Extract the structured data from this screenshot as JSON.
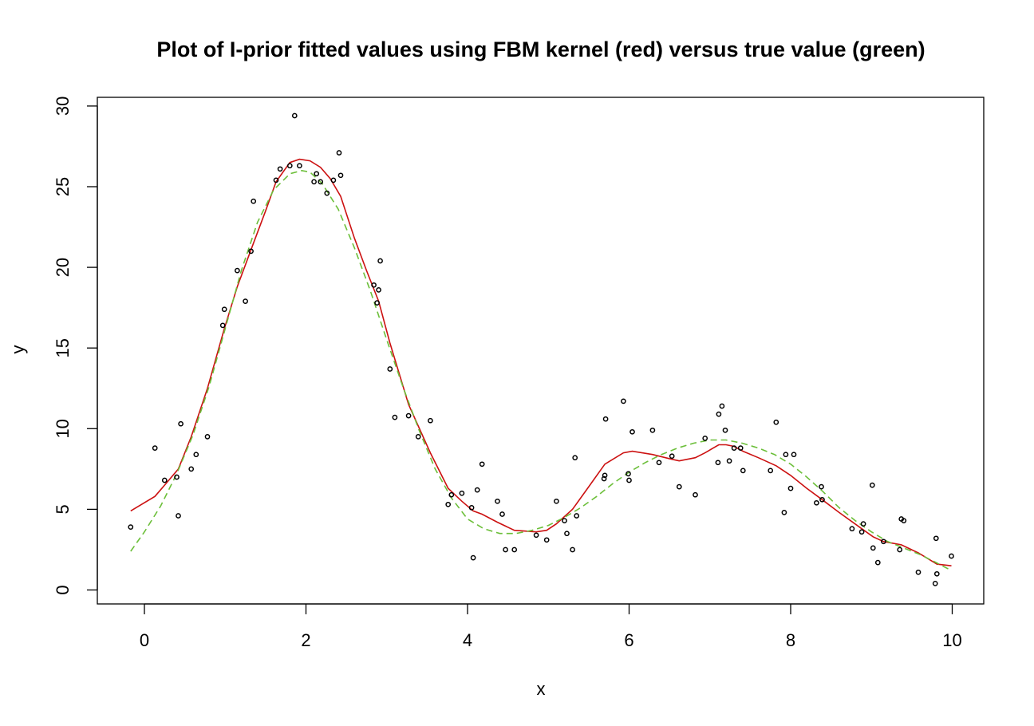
{
  "chart_data": {
    "type": "scatter",
    "title": "Plot of I-prior fitted values using FBM kernel (red) versus true value (green)",
    "xlabel": "x",
    "ylabel": "y",
    "xlim": [
      -0.2,
      10
    ],
    "ylim": [
      0,
      30
    ],
    "xticks": [
      0,
      2,
      4,
      6,
      8,
      10
    ],
    "yticks": [
      0,
      5,
      10,
      15,
      20,
      25,
      30
    ],
    "grid": false,
    "points": [
      [
        -0.17,
        3.9
      ],
      [
        0.13,
        8.8
      ],
      [
        0.25,
        6.8
      ],
      [
        0.4,
        7.0
      ],
      [
        0.42,
        4.6
      ],
      [
        0.45,
        10.3
      ],
      [
        0.58,
        7.5
      ],
      [
        0.64,
        8.4
      ],
      [
        0.78,
        9.5
      ],
      [
        0.97,
        16.4
      ],
      [
        0.99,
        17.4
      ],
      [
        1.15,
        19.8
      ],
      [
        1.25,
        17.9
      ],
      [
        1.32,
        21.0
      ],
      [
        1.35,
        24.1
      ],
      [
        1.63,
        25.4
      ],
      [
        1.68,
        26.1
      ],
      [
        1.8,
        26.3
      ],
      [
        1.86,
        29.4
      ],
      [
        1.92,
        26.3
      ],
      [
        2.1,
        25.3
      ],
      [
        2.13,
        25.8
      ],
      [
        2.18,
        25.3
      ],
      [
        2.26,
        24.6
      ],
      [
        2.34,
        25.4
      ],
      [
        2.41,
        27.1
      ],
      [
        2.43,
        25.7
      ],
      [
        2.84,
        18.9
      ],
      [
        2.88,
        17.8
      ],
      [
        2.9,
        18.6
      ],
      [
        2.92,
        20.4
      ],
      [
        3.04,
        13.7
      ],
      [
        3.1,
        10.7
      ],
      [
        3.27,
        10.8
      ],
      [
        3.39,
        9.5
      ],
      [
        3.54,
        10.5
      ],
      [
        3.76,
        5.3
      ],
      [
        3.8,
        5.9
      ],
      [
        3.93,
        6.0
      ],
      [
        4.05,
        5.1
      ],
      [
        4.07,
        2.0
      ],
      [
        4.12,
        6.2
      ],
      [
        4.18,
        7.8
      ],
      [
        4.37,
        5.5
      ],
      [
        4.43,
        4.7
      ],
      [
        4.47,
        2.5
      ],
      [
        4.58,
        2.5
      ],
      [
        4.85,
        3.4
      ],
      [
        4.98,
        3.1
      ],
      [
        5.1,
        5.5
      ],
      [
        5.2,
        4.3
      ],
      [
        5.23,
        3.5
      ],
      [
        5.3,
        2.5
      ],
      [
        5.33,
        8.2
      ],
      [
        5.35,
        4.6
      ],
      [
        5.69,
        6.9
      ],
      [
        5.7,
        7.1
      ],
      [
        5.71,
        10.6
      ],
      [
        5.93,
        11.7
      ],
      [
        5.99,
        7.2
      ],
      [
        6.0,
        6.8
      ],
      [
        6.04,
        9.8
      ],
      [
        6.29,
        9.9
      ],
      [
        6.37,
        7.9
      ],
      [
        6.53,
        8.3
      ],
      [
        6.62,
        6.4
      ],
      [
        6.82,
        5.9
      ],
      [
        6.94,
        9.4
      ],
      [
        7.1,
        7.9
      ],
      [
        7.11,
        10.9
      ],
      [
        7.15,
        11.4
      ],
      [
        7.19,
        9.9
      ],
      [
        7.24,
        8.0
      ],
      [
        7.3,
        8.8
      ],
      [
        7.38,
        8.8
      ],
      [
        7.41,
        7.4
      ],
      [
        7.75,
        7.4
      ],
      [
        7.82,
        10.4
      ],
      [
        7.92,
        4.8
      ],
      [
        7.94,
        8.4
      ],
      [
        8.0,
        6.3
      ],
      [
        8.04,
        8.4
      ],
      [
        8.32,
        5.4
      ],
      [
        8.38,
        6.4
      ],
      [
        8.39,
        5.6
      ],
      [
        8.76,
        3.8
      ],
      [
        8.88,
        3.6
      ],
      [
        8.9,
        4.1
      ],
      [
        9.01,
        6.5
      ],
      [
        9.02,
        2.6
      ],
      [
        9.08,
        1.7
      ],
      [
        9.15,
        3.0
      ],
      [
        9.35,
        2.5
      ],
      [
        9.37,
        4.4
      ],
      [
        9.4,
        4.3
      ],
      [
        9.58,
        1.1
      ],
      [
        9.79,
        0.4
      ],
      [
        9.8,
        3.2
      ],
      [
        9.81,
        1.0
      ],
      [
        9.99,
        2.1
      ]
    ],
    "series": [
      {
        "color": "#cc1111",
        "dash": "solid",
        "x": [
          -0.17,
          0.13,
          0.25,
          0.42,
          0.58,
          0.78,
          0.99,
          1.15,
          1.35,
          1.5,
          1.63,
          1.8,
          1.92,
          2.05,
          2.18,
          2.3,
          2.43,
          2.6,
          2.75,
          2.9,
          3.04,
          3.27,
          3.54,
          3.76,
          3.93,
          4.07,
          4.18,
          4.37,
          4.58,
          4.85,
          4.98,
          5.1,
          5.3,
          5.5,
          5.7,
          5.93,
          6.04,
          6.29,
          6.53,
          6.62,
          6.82,
          6.94,
          7.11,
          7.2,
          7.3,
          7.41,
          7.6,
          7.82,
          8.0,
          8.2,
          8.39,
          8.6,
          8.88,
          9.02,
          9.15,
          9.37,
          9.58,
          9.81,
          9.99
        ],
        "y": [
          4.9,
          5.8,
          6.5,
          7.5,
          9.5,
          12.5,
          16.2,
          18.8,
          21.5,
          23.5,
          25.3,
          26.5,
          26.7,
          26.6,
          26.2,
          25.5,
          24.4,
          21.8,
          19.8,
          17.9,
          15.3,
          11.5,
          8.5,
          6.3,
          5.5,
          4.9,
          4.7,
          4.2,
          3.7,
          3.6,
          3.7,
          4.1,
          5.0,
          6.4,
          7.8,
          8.5,
          8.6,
          8.4,
          8.1,
          8.0,
          8.2,
          8.5,
          9.0,
          9.0,
          8.9,
          8.6,
          8.2,
          7.7,
          7.1,
          6.3,
          5.6,
          4.8,
          3.8,
          3.3,
          3.0,
          2.8,
          2.3,
          1.6,
          1.5
        ]
      },
      {
        "color": "#6cbf3a",
        "dash": "dashed",
        "x": [
          -0.17,
          0.0,
          0.2,
          0.4,
          0.6,
          0.8,
          1.0,
          1.2,
          1.4,
          1.6,
          1.8,
          1.95,
          2.05,
          2.2,
          2.4,
          2.6,
          2.8,
          3.0,
          3.2,
          3.4,
          3.6,
          3.8,
          4.0,
          4.2,
          4.4,
          4.6,
          4.8,
          5.0,
          5.2,
          5.4,
          5.6,
          5.8,
          6.0,
          6.2,
          6.4,
          6.6,
          6.8,
          7.0,
          7.2,
          7.4,
          7.6,
          7.8,
          8.0,
          8.2,
          8.4,
          8.6,
          8.8,
          9.0,
          9.2,
          9.4,
          9.6,
          9.8,
          9.99
        ],
        "y": [
          2.4,
          3.6,
          5.2,
          7.2,
          9.6,
          12.6,
          16.2,
          19.8,
          22.8,
          24.8,
          25.8,
          26.0,
          25.9,
          25.2,
          23.6,
          21.2,
          18.5,
          15.5,
          12.6,
          9.9,
          7.5,
          5.7,
          4.4,
          3.8,
          3.5,
          3.5,
          3.7,
          4.0,
          4.5,
          5.1,
          5.8,
          6.6,
          7.3,
          7.9,
          8.4,
          8.8,
          9.1,
          9.3,
          9.3,
          9.1,
          8.8,
          8.4,
          7.8,
          7.0,
          6.1,
          5.1,
          4.3,
          3.6,
          3.0,
          2.6,
          2.2,
          1.7,
          1.2
        ]
      }
    ]
  }
}
